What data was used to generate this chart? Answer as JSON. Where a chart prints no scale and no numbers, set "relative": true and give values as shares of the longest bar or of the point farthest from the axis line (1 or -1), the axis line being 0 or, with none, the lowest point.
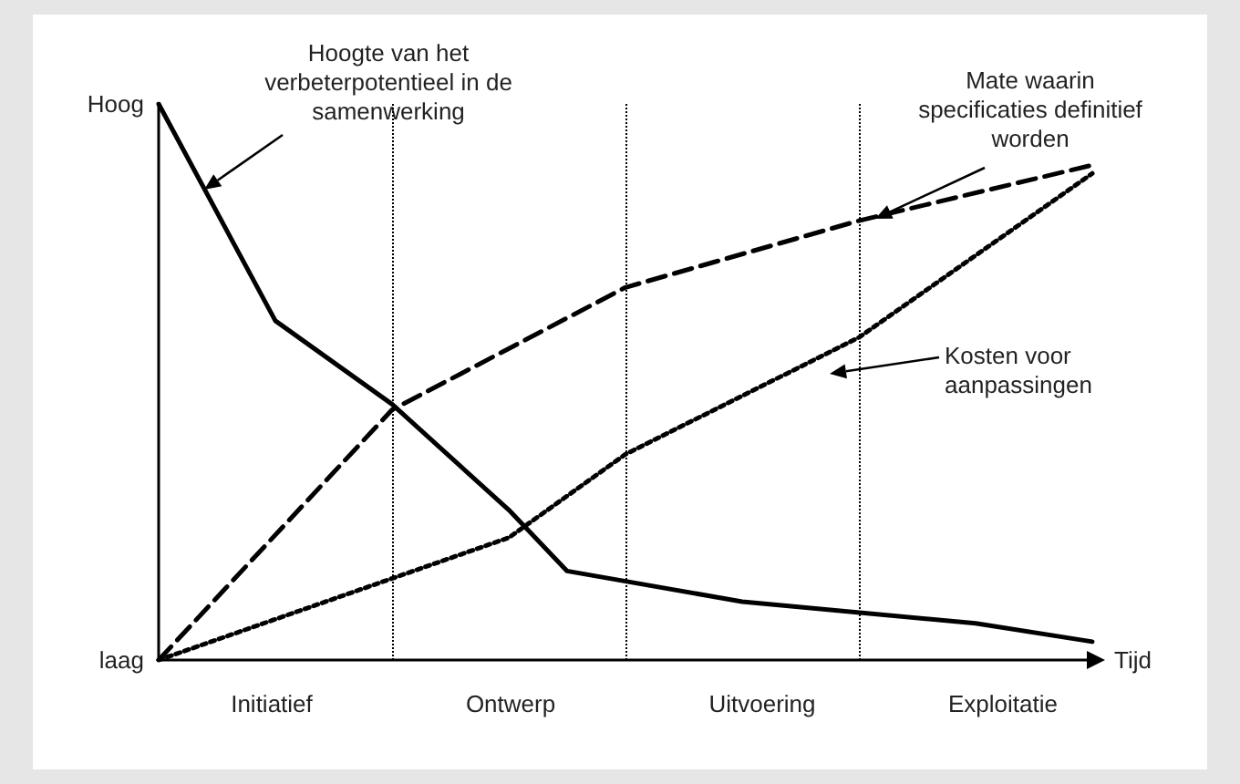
{
  "chart_data": {
    "type": "line",
    "relative": true,
    "xlabel": "Tijd",
    "marker": "none",
    "categories": [
      null,
      null,
      null,
      null,
      null,
      null,
      null,
      null,
      null,
      null,
      null,
      null,
      null,
      null,
      null,
      null,
      null
    ],
    "series": [
      {
        "color": "#000000",
        "line_style": "solid",
        "values": [
          1.0,
          null,
          0.61,
          null,
          0.46,
          null,
          0.27,
          0.16,
          null,
          null,
          0.105,
          null,
          null,
          null,
          0.066,
          null,
          0.033
        ]
      },
      {
        "color": "#000000",
        "line_style": "dashed",
        "values": [
          0,
          null,
          null,
          null,
          0.45,
          null,
          null,
          null,
          0.67,
          null,
          null,
          null,
          0.79,
          null,
          null,
          null,
          0.89
        ]
      },
      {
        "color": "#000000",
        "line_style": "dotted",
        "values": [
          0,
          null,
          null,
          null,
          null,
          null,
          0.22,
          null,
          0.37,
          null,
          null,
          null,
          0.58,
          null,
          null,
          null,
          0.875
        ]
      }
    ],
    "grid": "x",
    "annotations": [
      "Hoog",
      "laag",
      "Initiatief",
      "Ontwerp",
      "Uitvoering",
      "Exploitatie",
      "Hoogte van het\nverbeterpotentieel in de\nsamenwerking",
      "Mate waarin\nspecificaties definitief\nworden",
      "Kosten voor\naanpassingen"
    ]
  }
}
